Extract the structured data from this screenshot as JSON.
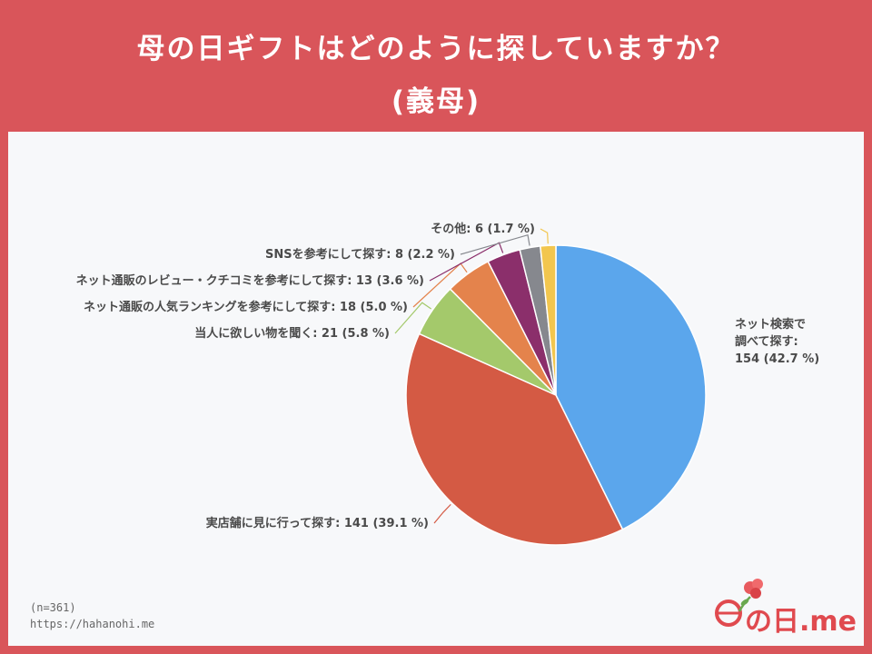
{
  "header": {
    "title_line1": "母の日ギフトはどのように探していますか？",
    "title_line2": "(義母)"
  },
  "chart_data": {
    "type": "pie",
    "start_angle_deg": 0,
    "direction": "clockwise",
    "slices": [
      {
        "label_lines": [
          "ネット検索で",
          "調べて探す:"
        ],
        "value_text": "154 (42.7 %)",
        "value": 154,
        "percent": 42.7,
        "color": "#5ba6ec"
      },
      {
        "label_lines": [
          "実店舗に見に行って探す: 141 (39.1 %)"
        ],
        "value_text": "",
        "value": 141,
        "percent": 39.1,
        "color": "#d45a44"
      },
      {
        "label_lines": [
          "当人に欲しい物を聞く: 21 (5.8 %)"
        ],
        "value_text": "",
        "value": 21,
        "percent": 5.8,
        "color": "#a4c96b"
      },
      {
        "label_lines": [
          "ネット通販の人気ランキングを参考にして探す: 18 (5.0 %)"
        ],
        "value_text": "",
        "value": 18,
        "percent": 5.0,
        "color": "#e4834c"
      },
      {
        "label_lines": [
          "ネット通販のレビュー・クチコミを参考にして探す: 13 (3.6 %)"
        ],
        "value_text": "",
        "value": 13,
        "percent": 3.6,
        "color": "#8b2f6b"
      },
      {
        "label_lines": [
          "SNSを参考にして探す: 8 (2.2 %)"
        ],
        "value_text": "",
        "value": 8,
        "percent": 2.2,
        "color": "#86888e"
      },
      {
        "label_lines": [
          "その他: 6 (1.7 %)"
        ],
        "value_text": "",
        "value": 6,
        "percent": 1.7,
        "color": "#f2c64e"
      }
    ]
  },
  "footer": {
    "sample_size": "(n=361)",
    "url": "https://hahanohi.me"
  },
  "logo": {
    "text": "の日.me"
  }
}
